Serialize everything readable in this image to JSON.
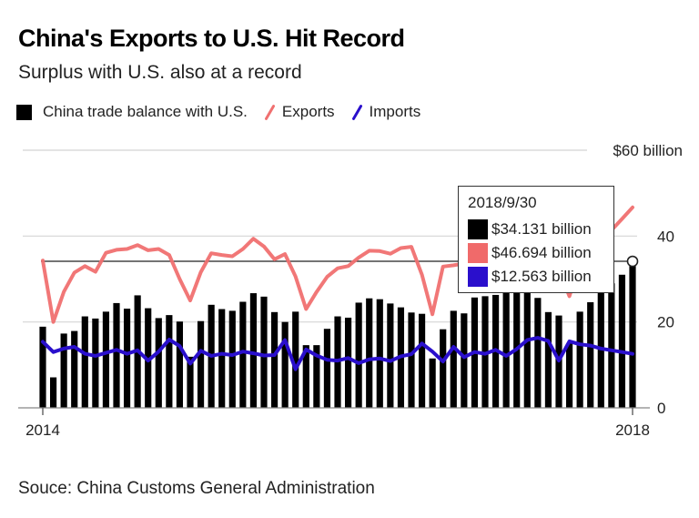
{
  "title": "China's Exports to U.S. Hit Record",
  "subtitle": "Surplus with U.S. also at a record",
  "source": "Souce: China Customs General Administration",
  "legend": [
    {
      "label": "China trade balance with U.S.",
      "color": "#000000",
      "kind": "bar"
    },
    {
      "label": "Exports",
      "color": "#f07070",
      "kind": "line"
    },
    {
      "label": "Imports",
      "color": "#2a0fcc",
      "kind": "line"
    }
  ],
  "tooltip": {
    "date": "2018/9/30",
    "rows": [
      {
        "value": "$34.131 billion",
        "color": "#000000"
      },
      {
        "value": "$46.694 billion",
        "color": "#f06a6a"
      },
      {
        "value": "$12.563 billion",
        "color": "#2a0fcc"
      }
    ]
  },
  "chart_data": {
    "type": "bar",
    "title": "China's Exports to U.S. Hit Record",
    "subtitle": "Surplus with U.S. also at a record",
    "xlabel": "",
    "ylabel": "",
    "ylim": [
      0,
      60
    ],
    "y_ticks": [
      {
        "value": 0,
        "label": "0"
      },
      {
        "value": 20,
        "label": "20"
      },
      {
        "value": 40,
        "label": "40"
      },
      {
        "value": 60,
        "label": "$60 billion"
      }
    ],
    "x_ticks": [
      {
        "index": 0,
        "label": "2014"
      },
      {
        "index": 56,
        "label": "2018"
      }
    ],
    "reference_line": 34.131,
    "x_range": [
      "2014-01",
      "2018-09"
    ],
    "series": [
      {
        "name": "China trade balance with U.S.",
        "type": "bar",
        "color": "#000000",
        "values": [
          18.9,
          7.1,
          17.3,
          17.9,
          21.3,
          20.8,
          22.4,
          24.4,
          23.1,
          26.2,
          23.2,
          20.9,
          21.6,
          20.1,
          11.9,
          20.2,
          24.0,
          23.0,
          22.6,
          24.7,
          26.7,
          25.9,
          22.3,
          20.0,
          22.4,
          14.6,
          14.6,
          18.4,
          21.3,
          21.0,
          24.5,
          25.5,
          25.3,
          24.3,
          23.4,
          22.2,
          21.9,
          11.5,
          18.3,
          22.6,
          22.0,
          25.7,
          26.0,
          26.3,
          27.8,
          28.3,
          26.9,
          25.6,
          22.3,
          21.5,
          15.0,
          22.4,
          24.6,
          28.6,
          29.0,
          31.0,
          34.131
        ]
      },
      {
        "name": "Exports",
        "type": "line",
        "color": "#f07070",
        "values": [
          34.3,
          20.0,
          27.0,
          31.5,
          33.0,
          31.7,
          36.1,
          36.8,
          37.0,
          37.9,
          36.7,
          37.0,
          35.6,
          30.0,
          25.0,
          31.6,
          36.0,
          35.6,
          35.3,
          37.0,
          39.4,
          37.6,
          34.6,
          35.8,
          30.6,
          23.0,
          27.0,
          30.5,
          32.5,
          33.0,
          35.0,
          36.6,
          36.5,
          35.9,
          37.2,
          37.5,
          31.0,
          21.8,
          32.9,
          33.2,
          33.6,
          35.0,
          36.2,
          37.2,
          38.5,
          38.8,
          38.4,
          36.8,
          35.0,
          32.2,
          26.0,
          33.6,
          37.5,
          40.0,
          41.4,
          44.0,
          46.694
        ]
      },
      {
        "name": "Imports",
        "type": "line",
        "color": "#2a0fcc",
        "values": [
          15.4,
          13.0,
          13.8,
          14.2,
          12.6,
          12.1,
          12.8,
          13.5,
          12.6,
          13.4,
          11.0,
          13.1,
          15.9,
          14.4,
          10.3,
          13.3,
          12.1,
          12.6,
          12.3,
          13.1,
          12.7,
          12.2,
          12.3,
          15.8,
          9.0,
          13.6,
          12.2,
          11.2,
          11.0,
          11.6,
          10.4,
          11.3,
          11.5,
          10.9,
          12.0,
          12.5,
          15.0,
          13.1,
          10.8,
          14.2,
          11.8,
          13.0,
          12.6,
          13.5,
          12.1,
          13.7,
          15.8,
          16.3,
          15.6,
          11.0,
          15.5,
          14.8,
          14.5,
          13.8,
          13.4,
          13.0,
          12.563
        ]
      }
    ]
  }
}
